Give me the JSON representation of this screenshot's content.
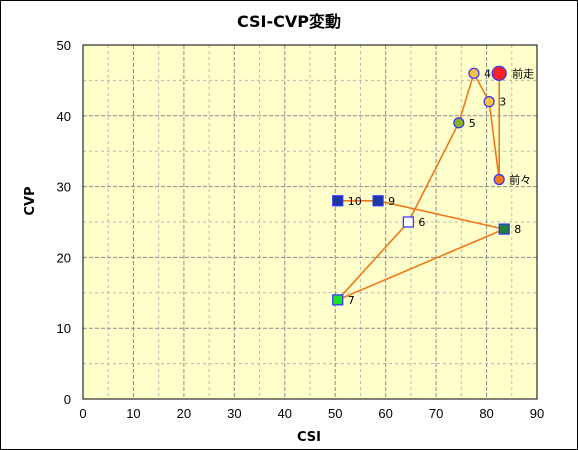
{
  "chart_data": {
    "type": "scatter",
    "title": "CSI-CVP変動",
    "xlabel": "CSI",
    "ylabel": "CVP",
    "xlim": [
      0,
      90
    ],
    "ylim": [
      0,
      50
    ],
    "xticks": [
      0,
      10,
      20,
      30,
      40,
      50,
      60,
      70,
      80,
      90
    ],
    "yticks": [
      0,
      10,
      20,
      30,
      40,
      50
    ],
    "grid": true,
    "colors": {
      "plot_bg": "#ffffcc",
      "line": "#f07818",
      "major_grid": "#8c8c8c",
      "minor_grid": "#b8b8b8"
    },
    "line_order": [
      "前走",
      "前々",
      "3",
      "4",
      "5",
      "6",
      "7",
      "8",
      "9",
      "10"
    ],
    "points": [
      {
        "label": "前走",
        "x": 82.5,
        "y": 46,
        "shape": "circle-large",
        "fill": "#ff2020",
        "stroke": "#3030ff"
      },
      {
        "label": "前々",
        "x": 82.5,
        "y": 31,
        "shape": "circle",
        "fill": "#f07818",
        "stroke": "#3030ff"
      },
      {
        "label": "3",
        "x": 80.5,
        "y": 42,
        "shape": "circle",
        "fill": "#f6c040",
        "stroke": "#3030ff"
      },
      {
        "label": "4",
        "x": 77.5,
        "y": 46,
        "shape": "circle",
        "fill": "#f6c040",
        "stroke": "#3030ff"
      },
      {
        "label": "5",
        "x": 74.5,
        "y": 39,
        "shape": "circle",
        "fill": "#8cb020",
        "stroke": "#3030ff"
      },
      {
        "label": "6",
        "x": 64.5,
        "y": 25,
        "shape": "square",
        "fill": "#ffffff",
        "stroke": "#3030ff"
      },
      {
        "label": "7",
        "x": 50.5,
        "y": 14,
        "shape": "square",
        "fill": "#20e020",
        "stroke": "#3030ff"
      },
      {
        "label": "8",
        "x": 83.5,
        "y": 24,
        "shape": "square",
        "fill": "#208040",
        "stroke": "#3030ff"
      },
      {
        "label": "9",
        "x": 58.5,
        "y": 28,
        "shape": "square",
        "fill": "#1a3aa0",
        "stroke": "#3030ff"
      },
      {
        "label": "10",
        "x": 50.5,
        "y": 28,
        "shape": "square",
        "fill": "#1a3aa0",
        "stroke": "#3030ff"
      }
    ]
  }
}
